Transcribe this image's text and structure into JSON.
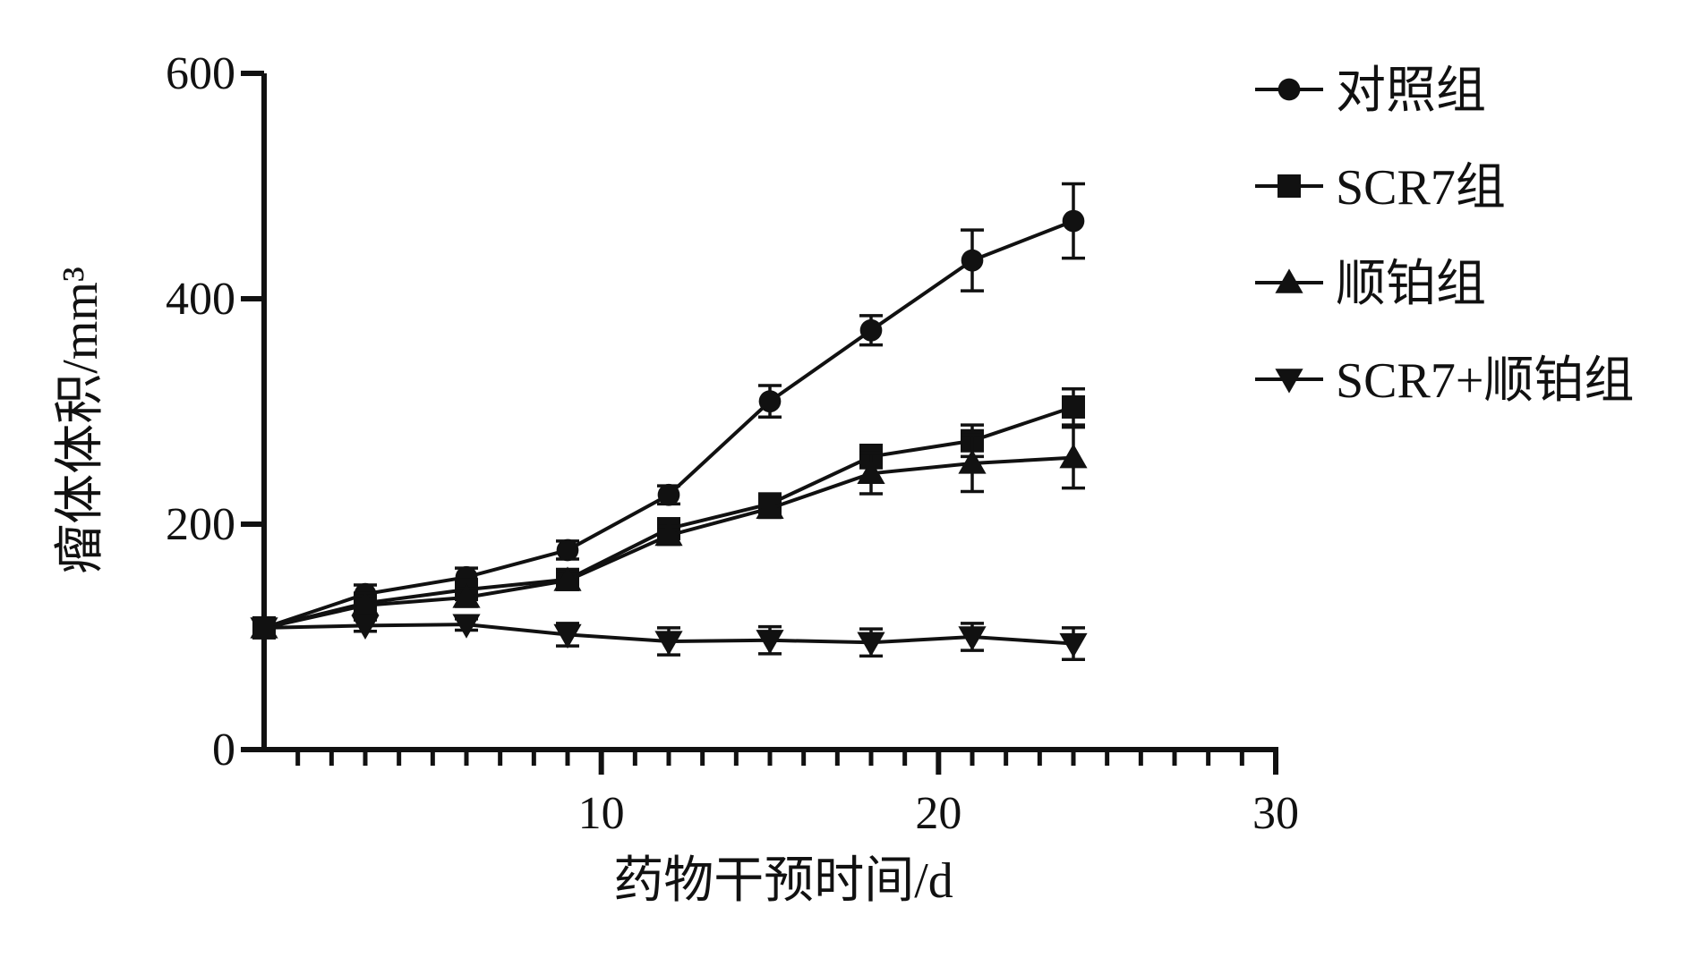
{
  "chart_data": {
    "type": "line",
    "title": "",
    "xlabel": "药物干预时间/d",
    "ylabel": "瘤体体积/mm³",
    "xlim": [
      0,
      30
    ],
    "ylim": [
      0,
      600
    ],
    "x_ticks": [
      10,
      20,
      30
    ],
    "y_ticks": [
      0,
      200,
      400,
      600
    ],
    "x_minor_step": 1,
    "grid": false,
    "legend_position": "top-right",
    "x": [
      0,
      3,
      6,
      9,
      12,
      15,
      18,
      21,
      24
    ],
    "series": [
      {
        "name": "对照组",
        "marker": "circle",
        "values": [
          108,
          138,
          153,
          177,
          226,
          309,
          372,
          434,
          469
        ],
        "errors": [
          5,
          8,
          8,
          8,
          8,
          14,
          13,
          27,
          33
        ]
      },
      {
        "name": "SCR7组",
        "marker": "square",
        "values": [
          108,
          130,
          142,
          151,
          196,
          218,
          260,
          274,
          304
        ],
        "errors": [
          5,
          8,
          8,
          8,
          8,
          8,
          10,
          14,
          16
        ]
      },
      {
        "name": "顺铂组",
        "marker": "triangle-up",
        "values": [
          108,
          128,
          135,
          150,
          190,
          214,
          245,
          254,
          259
        ],
        "errors": [
          5,
          8,
          8,
          8,
          8,
          8,
          18,
          25,
          27
        ]
      },
      {
        "name": "SCR7+顺铂组",
        "marker": "triangle-down",
        "values": [
          108,
          110,
          111,
          102,
          96,
          97,
          95,
          100,
          94
        ],
        "errors": [
          5,
          5,
          5,
          10,
          12,
          12,
          12,
          12,
          14
        ]
      }
    ]
  }
}
